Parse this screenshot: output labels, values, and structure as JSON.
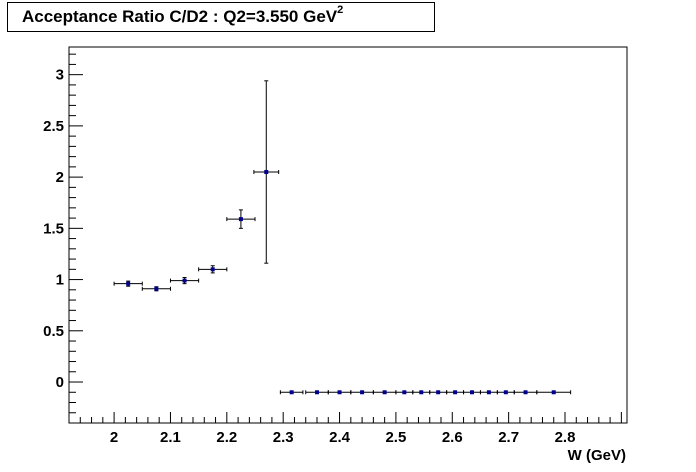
{
  "title": {
    "main": "Acceptance Ratio C/D2 : Q2=3.550 GeV",
    "superscript": "2"
  },
  "chart_data": {
    "type": "scatter",
    "title": "Acceptance Ratio C/D2 : Q2=3.550 GeV^2",
    "xlabel": "W (GeV)",
    "ylabel": "",
    "xlim": [
      1.92,
      2.91
    ],
    "ylim": [
      -0.4,
      3.27
    ],
    "grid": false,
    "xticks": [
      "2",
      "2.1",
      "2.2",
      "2.3",
      "2.4",
      "2.5",
      "2.6",
      "2.7",
      "2.8"
    ],
    "yticks": [
      "0",
      "0.5",
      "1",
      "1.5",
      "2",
      "2.5",
      "3"
    ],
    "marker_color": "#00008b",
    "points": [
      {
        "x": 2.025,
        "y": 0.96,
        "xerr": 0.025,
        "yerr": 0.025
      },
      {
        "x": 2.075,
        "y": 0.91,
        "xerr": 0.025,
        "yerr": 0.02
      },
      {
        "x": 2.125,
        "y": 0.99,
        "xerr": 0.025,
        "yerr": 0.03
      },
      {
        "x": 2.175,
        "y": 1.1,
        "xerr": 0.025,
        "yerr": 0.035
      },
      {
        "x": 2.225,
        "y": 1.59,
        "xerr": 0.025,
        "yerr": 0.09
      },
      {
        "x": 2.27,
        "y": 2.05,
        "xerr": 0.022,
        "yerr": 0.89
      },
      {
        "x": 2.315,
        "y": -0.1,
        "xerr": 0.02,
        "yerr": 0.0
      },
      {
        "x": 2.36,
        "y": -0.1,
        "xerr": 0.02,
        "yerr": 0.0
      },
      {
        "x": 2.4,
        "y": -0.1,
        "xerr": 0.02,
        "yerr": 0.0
      },
      {
        "x": 2.44,
        "y": -0.1,
        "xerr": 0.02,
        "yerr": 0.0
      },
      {
        "x": 2.48,
        "y": -0.1,
        "xerr": 0.02,
        "yerr": 0.0
      },
      {
        "x": 2.515,
        "y": -0.1,
        "xerr": 0.015,
        "yerr": 0.0
      },
      {
        "x": 2.545,
        "y": -0.1,
        "xerr": 0.015,
        "yerr": 0.0
      },
      {
        "x": 2.575,
        "y": -0.1,
        "xerr": 0.015,
        "yerr": 0.0
      },
      {
        "x": 2.605,
        "y": -0.1,
        "xerr": 0.015,
        "yerr": 0.0
      },
      {
        "x": 2.635,
        "y": -0.1,
        "xerr": 0.015,
        "yerr": 0.0
      },
      {
        "x": 2.665,
        "y": -0.1,
        "xerr": 0.015,
        "yerr": 0.0
      },
      {
        "x": 2.695,
        "y": -0.1,
        "xerr": 0.015,
        "yerr": 0.0
      },
      {
        "x": 2.73,
        "y": -0.1,
        "xerr": 0.02,
        "yerr": 0.0
      },
      {
        "x": 2.78,
        "y": -0.1,
        "xerr": 0.03,
        "yerr": 0.0
      }
    ]
  }
}
